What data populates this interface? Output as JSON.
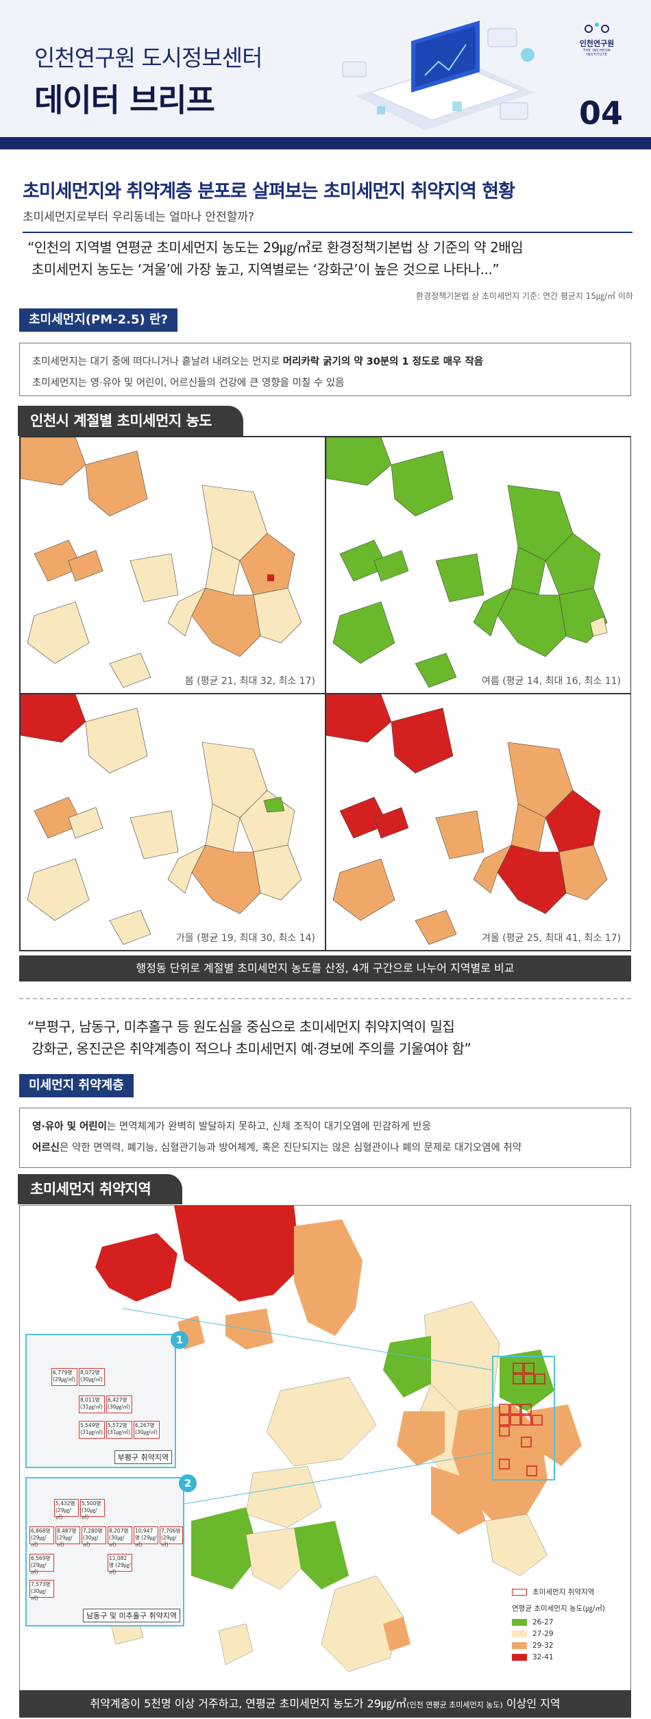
{
  "header": {
    "subtitle": "인천연구원 도시정보센터",
    "title": "데이터 브리프",
    "issue_number": "04",
    "logo_text": "인천연구원",
    "logo_sub": "THE INCHEON INSTITUTE"
  },
  "article": {
    "title": "초미세먼지와 취약계층 분포로 살펴보는 초미세먼지 취약지역 현황",
    "subtitle": "초미세먼지로부터 우리동네는 얼마나 안전할까?",
    "quote_line1": "“인천의 지역별 연평균 초미세먼지 농도는 29㎍/㎥로 환경정책기본법 상 기준의 약 2배임",
    "quote_line2": "초미세먼지 농도는 ‘겨울’에 가장 높고, 지역별로는 ‘강화군’이 높은 것으로 나타나...”",
    "quote_note": "환경정책기본법 상 초미세먼지 기준: 연간 평균치 15㎍/㎥ 이하"
  },
  "pm25_section": {
    "heading": "초미세먼지(PM-2.5) 란?",
    "line1_a": "초미세먼지는 대기 중에 떠다니거나 흩날려 내려오는 먼지로 ",
    "line1_b": "머리카락 굵기의 약 30분의 1 정도로 매우 작음",
    "line2": "초미세먼지는 영·유아 및 어린이, 어르신들의 건강에 큰 영향을 미칠 수 있음"
  },
  "seasonal": {
    "heading": "인천시 계절별 초미세먼지 농도",
    "caption_spring": "봄 (평균 21, 최대 32, 최소 17)",
    "caption_summer": "여름 (평균 14, 최대 16, 최소 11)",
    "caption_autumn": "가을 (평균 19, 최대 30, 최소 14)",
    "caption_winter": "겨울 (평균 25, 최대 41, 최소 17)",
    "footer": "행정동 단위로 계절별 초미세먼지 농도를 산정, 4개 구간으로 나누어 지역별로 비교"
  },
  "quote2": {
    "line1": "“부평구, 남동구, 미추홀구 등 원도심을 중심으로 초미세먼지 취약지역이 밀집",
    "line2": "강화군, 옹진군은 취약계층이 적으나 초미세먼지 예·경보에 주의를 기울여야 함”"
  },
  "vulnerable": {
    "heading": "미세먼지 취약계층",
    "line1_a": "영·유아 및 어린이",
    "line1_b": "는 면역체계가 완벽히 발달하지 못하고, 신체 조직이 대기오염에 민감하게 반응",
    "line2_a": "어르신",
    "line2_b": "은 약한 면역력, 폐기능, 심혈관기능과 방어체계, 혹은 진단되지는 않은 심혈관이나 폐의 문제로 대기오염에 취약"
  },
  "area_map": {
    "heading": "초미세먼지 취약지역",
    "inset1_num": "1",
    "inset1_label": "부평구 취약지역",
    "inset1_cells": [
      "6,779명 (29㎍/㎥)",
      "8,072명 (30㎍/㎥)",
      "8,011명 (31㎍/㎥)",
      "6,427명 (30㎍/㎥)",
      "5,549명 (31㎍/㎥)",
      "5,572명 (31㎍/㎥)",
      "6,267명 (30㎍/㎥)"
    ],
    "inset2_num": "2",
    "inset2_label": "남동구 및 미추홀구 취약지역",
    "inset2_cells": [
      "5,432명 (29㎍/㎥)",
      "5,500명 (30㎍/㎥)",
      "6,868명 (29㎍/㎥)",
      "8,487명 (29㎍/㎥)",
      "7,280명 (30㎍/㎥)",
      "8,207명 (30㎍/㎥)",
      "10,947명 (29㎍/㎥)",
      "7,706명 (29㎍/㎥)",
      "6,569명 (29㎍/㎥)",
      "11,082명 (29㎍/㎥)",
      "7,573명 (30㎍/㎥)"
    ],
    "legend_vulnerable": "초미세먼지 취약지역",
    "legend_title": "연평균 초미세먼지 농도(㎍/㎥)",
    "legend_classes": [
      {
        "label": "26-27",
        "color": "#6ab82c"
      },
      {
        "label": "27-29",
        "color": "#f9e7bd"
      },
      {
        "label": "29-32",
        "color": "#f0a868"
      },
      {
        "label": "32-41",
        "color": "#d42120"
      }
    ],
    "footer_main": "취약계층이 5천명 이상 거주하고, 연평균 초미세먼지 농도가 29㎍/㎥",
    "footer_small": "(인천 연평균 초미세먼지 농도)",
    "footer_end": " 이상인 지역"
  },
  "colors": {
    "navy": "#1a2e78",
    "dark_bar": "#3a3a3a",
    "green": "#6ab82c",
    "cream": "#f9e7bd",
    "orange": "#f0a868",
    "red": "#d42120",
    "cyan": "#4cc3e0"
  }
}
